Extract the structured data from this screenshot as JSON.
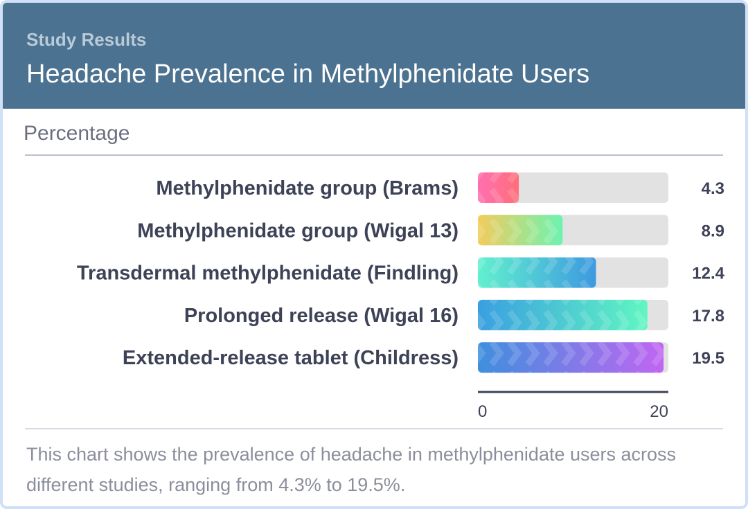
{
  "header": {
    "subtitle": "Study Results",
    "title": "Headache Prevalence in Methylphenidate Users"
  },
  "unit_label": "Percentage",
  "caption": "This chart shows the prevalence of headache in methylphenidate users across different studies, ranging from 4.3% to 19.5%.",
  "chart_data": {
    "type": "bar",
    "orientation": "horizontal",
    "categories": [
      "Methylphenidate group (Brams)",
      "Methylphenidate group (Wigal 13)",
      "Transdermal methylphenidate (Findling)",
      "Prolonged release (Wigal 16)",
      "Extended-release tablet (Childress)"
    ],
    "values": [
      4.3,
      8.9,
      12.4,
      17.8,
      19.5
    ],
    "value_labels": [
      "4.3",
      "8.9",
      "12.4",
      "17.8",
      "19.5"
    ],
    "xlim": [
      0,
      20
    ],
    "ticks": [
      "0",
      "20"
    ],
    "grid": false,
    "legend": "none",
    "gradients": [
      [
        "#ff6fb1",
        "#ff6f7a"
      ],
      [
        "#f3cc5c",
        "#6df3b0"
      ],
      [
        "#62f0cf",
        "#3d9adf"
      ],
      [
        "#3a9fe0",
        "#60f6c2"
      ],
      [
        "#3f8fdd",
        "#c066f2"
      ]
    ],
    "track_color": "#e2e2e2",
    "axis_color": "#3d4257"
  }
}
